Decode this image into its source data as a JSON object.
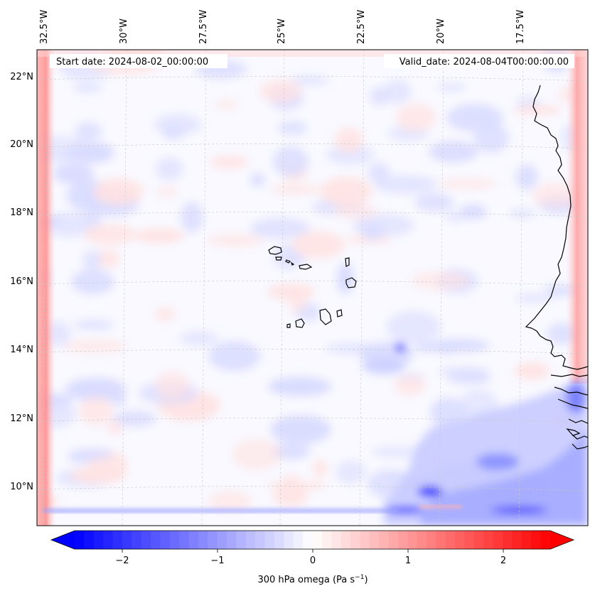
{
  "map": {
    "start_date": "Start date: 2024-08-02_00:00:00",
    "valid_date": "Valid_date: 2024-08-04T00:00:00.00",
    "lon_labels": [
      "32.5°W",
      "30°W",
      "27.5°W",
      "25°W",
      "22.5°W",
      "20°W",
      "17.5°W"
    ],
    "lat_labels": [
      "22°N",
      "20°N",
      "18°N",
      "16°N",
      "14°N",
      "12°N",
      "10°N"
    ],
    "colors": {
      "negative": "#0000ff",
      "zero": "#ffffff",
      "positive": "#ff0000",
      "coast": "#000000",
      "grid": "#c8c8c8"
    }
  },
  "colorbar": {
    "min": -2.5,
    "max": 2.5,
    "ticks": [
      "−2",
      "−1",
      "0",
      "1",
      "2"
    ],
    "label_main": "300 hPa omega (Pa s",
    "label_sup": "−1",
    "label_end": ")"
  }
}
